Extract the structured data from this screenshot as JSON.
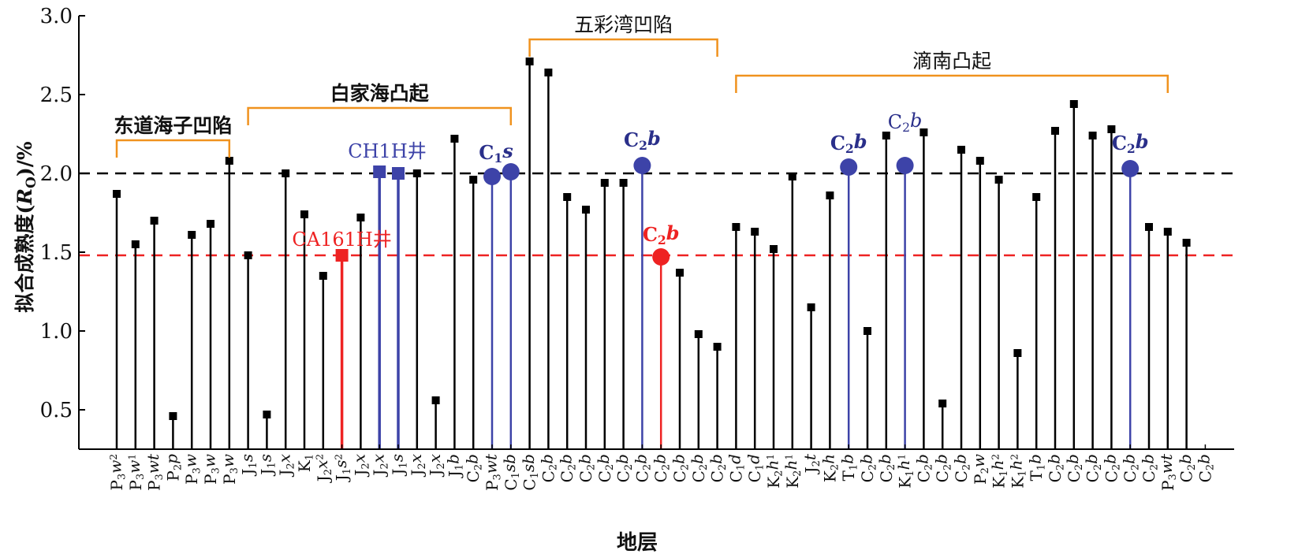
{
  "chart_data": {
    "type": "stem",
    "xlabel": "地层",
    "ylabel_prefix": "拟合成熟度(",
    "ylabel_var": "R",
    "ylabel_sub": "O",
    "ylabel_suffix": ")/%",
    "ylim": [
      0.25,
      3.0
    ],
    "yticks": [
      "0.5",
      "1.0",
      "1.5",
      "2.0",
      "2.5",
      "3.0"
    ],
    "reference_lines": [
      {
        "value": 2.0,
        "color": "#000000"
      },
      {
        "value": 1.48,
        "color": "#ee2222"
      }
    ],
    "categories": [
      "P3w2",
      "P3w1",
      "P3wt",
      "P2p",
      "P3w",
      "P3w",
      "P3w",
      "J1s",
      "J1s",
      "J2x",
      "K1",
      "J2x2",
      "J1s2",
      "J2x",
      "J2x",
      "J1s",
      "J2x",
      "J2x",
      "J1b",
      "C2b",
      "P3wt",
      "C1sb",
      "C1sb",
      "C2b",
      "C2b",
      "C2b",
      "C2b",
      "C2b",
      "C2b",
      "C2b",
      "C2b",
      "C2b",
      "C2b",
      "C1d",
      "C1d",
      "K2h1",
      "K2h1",
      "J2t",
      "K2h",
      "T1b",
      "C2b",
      "C2b",
      "K1h1",
      "C2b",
      "C2b",
      "C2b",
      "P2w",
      "K1h2",
      "K1h2",
      "T1b",
      "C2b",
      "C2b",
      "C2b",
      "C2b",
      "C2b",
      "C2b",
      "P3wt",
      "C2b",
      "C2b"
    ],
    "values": [
      1.87,
      1.55,
      1.7,
      0.46,
      1.61,
      1.68,
      2.08,
      1.48,
      0.47,
      2.0,
      1.74,
      1.35,
      1.48,
      1.72,
      2.01,
      2.0,
      2.0,
      0.56,
      2.22,
      1.96,
      1.98,
      2.01,
      2.71,
      2.64,
      1.85,
      1.77,
      1.94,
      1.94,
      2.05,
      1.47,
      1.37,
      0.98,
      0.9,
      1.66,
      1.63,
      1.52,
      1.98,
      1.15,
      1.86,
      2.04,
      1.0,
      2.24,
      2.05,
      2.26,
      0.54,
      2.15,
      2.08,
      1.96,
      0.86,
      1.85,
      2.27,
      2.44,
      2.24,
      2.28,
      2.03,
      1.66,
      1.63,
      1.56,
      null
    ],
    "highlights": [
      {
        "index": 12,
        "marker": "square",
        "color": "#ee2222"
      },
      {
        "index": 14,
        "marker": "square",
        "color": "#3d43a8"
      },
      {
        "index": 15,
        "marker": "square",
        "color": "#3d43a8"
      },
      {
        "index": 20,
        "marker": "circle",
        "color": "#3d43a8"
      },
      {
        "index": 21,
        "marker": "circle",
        "color": "#3d43a8"
      },
      {
        "index": 28,
        "marker": "circle",
        "color": "#3d43a8"
      },
      {
        "index": 29,
        "marker": "circle",
        "color": "#ee2222"
      },
      {
        "index": 39,
        "marker": "circle",
        "color": "#3d43a8"
      },
      {
        "index": 42,
        "marker": "circle",
        "color": "#3d43a8"
      },
      {
        "index": 54,
        "marker": "circle",
        "color": "#3d43a8"
      }
    ],
    "regions": [
      {
        "name": "东道海子凹陷",
        "from": 0,
        "to": 6
      },
      {
        "name": "白家海凸起",
        "from": 7,
        "to": 21
      },
      {
        "name": "五彩湾凹陷",
        "from": 22,
        "to": 32
      },
      {
        "name": "滴南凸起",
        "from": 33,
        "to": 56
      }
    ],
    "annotations": [
      {
        "text": "CA161H井",
        "index": 12,
        "color": "#ee2222"
      },
      {
        "text": "CH1H井",
        "index": 15,
        "color": "#3d43a8"
      },
      {
        "text": "C1s",
        "index": 20,
        "color": "#2a2f8a"
      },
      {
        "text": "C2b",
        "index": 28,
        "color": "#2a2f8a"
      },
      {
        "text": "C2b",
        "index": 29,
        "color": "#ee2222"
      },
      {
        "text": "C2b",
        "index": 39,
        "color": "#2a2f8a"
      },
      {
        "text": "C2b",
        "index": 42,
        "color": "#2a2f8a"
      },
      {
        "text": "C2b",
        "index": 54,
        "color": "#2a2f8a"
      }
    ],
    "colors": {
      "stem": "#000000",
      "bracket": "#f0921e",
      "blue": "#3d43a8",
      "red": "#ee2222"
    }
  }
}
